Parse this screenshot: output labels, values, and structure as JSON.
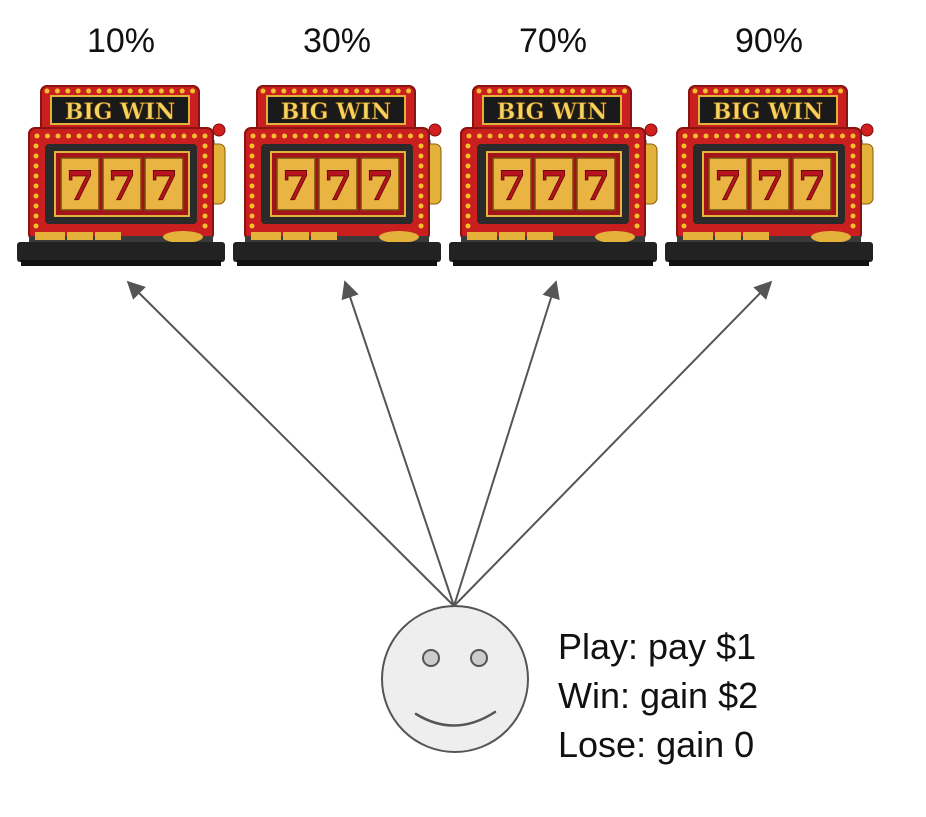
{
  "machines": [
    {
      "probability": "10%",
      "sign": "BIG WIN",
      "reels": [
        "7",
        "7",
        "7"
      ]
    },
    {
      "probability": "30%",
      "sign": "BIG WIN",
      "reels": [
        "7",
        "7",
        "7"
      ]
    },
    {
      "probability": "70%",
      "sign": "BIG WIN",
      "reels": [
        "7",
        "7",
        "7"
      ]
    },
    {
      "probability": "90%",
      "sign": "BIG WIN",
      "reels": [
        "7",
        "7",
        "7"
      ]
    }
  ],
  "rules": {
    "play": "Play: pay $1",
    "win": "Win: gain $2",
    "lose": "Lose: gain 0"
  },
  "colors": {
    "cabinet_red": "#c9201f",
    "bulb_gold": "#f2c02c",
    "reel_gold": "#e9b441",
    "digit_red": "#b5121b",
    "arrow": "#555555",
    "face_fill": "#eeeeee"
  }
}
